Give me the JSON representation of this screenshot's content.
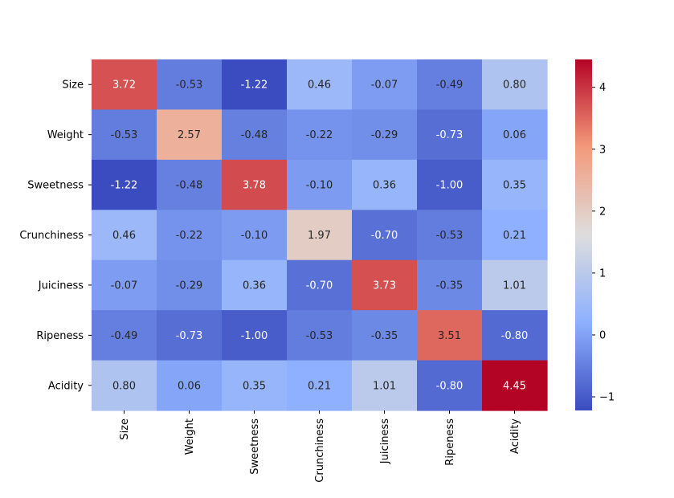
{
  "chart_data": {
    "type": "heatmap",
    "title": "",
    "xlabel": "",
    "ylabel": "",
    "rows": [
      "Size",
      "Weight",
      "Sweetness",
      "Crunchiness",
      "Juiciness",
      "Ripeness",
      "Acidity"
    ],
    "columns": [
      "Size",
      "Weight",
      "Sweetness",
      "Crunchiness",
      "Juiciness",
      "Ripeness",
      "Acidity"
    ],
    "values": [
      [
        3.72,
        -0.53,
        -1.22,
        0.46,
        -0.07,
        -0.49,
        0.8
      ],
      [
        -0.53,
        2.57,
        -0.48,
        -0.22,
        -0.29,
        -0.73,
        0.06
      ],
      [
        -1.22,
        -0.48,
        3.78,
        -0.1,
        0.36,
        -1.0,
        0.35
      ],
      [
        0.46,
        -0.22,
        -0.1,
        1.97,
        -0.7,
        -0.53,
        0.21
      ],
      [
        -0.07,
        -0.29,
        0.36,
        -0.7,
        3.73,
        -0.35,
        1.01
      ],
      [
        -0.49,
        -0.73,
        -1.0,
        -0.53,
        -0.35,
        3.51,
        -0.8
      ],
      [
        0.8,
        0.06,
        0.35,
        0.21,
        1.01,
        -0.8,
        4.45
      ]
    ],
    "cell_labels": [
      [
        "3.72",
        "-0.53",
        "-1.22",
        "0.46",
        "-0.07",
        "-0.49",
        "0.80"
      ],
      [
        "-0.53",
        "2.57",
        "-0.48",
        "-0.22",
        "-0.29",
        "-0.73",
        "0.06"
      ],
      [
        "-1.22",
        "-0.48",
        "3.78",
        "-0.10",
        "0.36",
        "-1.00",
        "0.35"
      ],
      [
        "0.46",
        "-0.22",
        "-0.10",
        "1.97",
        "-0.70",
        "-0.53",
        "0.21"
      ],
      [
        "-0.07",
        "-0.29",
        "0.36",
        "-0.70",
        "3.73",
        "-0.35",
        "1.01"
      ],
      [
        "-0.49",
        "-0.73",
        "-1.00",
        "-0.53",
        "-0.35",
        "3.51",
        "-0.80"
      ],
      [
        "0.80",
        "0.06",
        "0.35",
        "0.21",
        "1.01",
        "-0.80",
        "4.45"
      ]
    ],
    "colormap": "coolwarm",
    "colormap_stops": [
      "#3b4cc0",
      "#8db0fe",
      "#dddddd",
      "#f49a7b",
      "#b40426"
    ],
    "value_range": [
      -1.22,
      4.45
    ],
    "colorbar": {
      "ticks": [
        -1,
        0,
        1,
        2,
        3,
        4
      ],
      "tick_labels": [
        "−1",
        "0",
        "1",
        "2",
        "3",
        "4"
      ]
    },
    "legend": "none",
    "grid": false
  }
}
